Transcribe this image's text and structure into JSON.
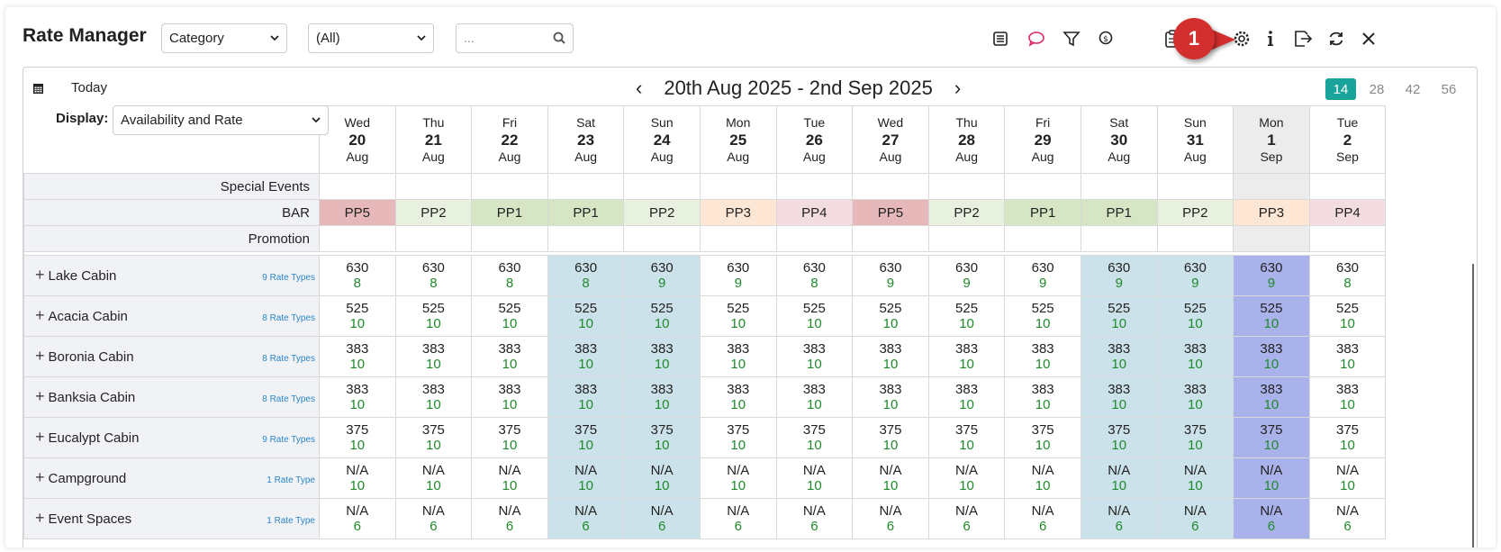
{
  "app": {
    "title": "Rate Manager"
  },
  "filters": {
    "category": "Category",
    "all": "(All)",
    "search_placeholder": "..."
  },
  "toolbar": {
    "icons": [
      "list-icon",
      "chat-icon",
      "filter-icon",
      "money-icon",
      "clipboard-icon",
      "hat-icon",
      "gear-icon",
      "info-icon",
      "export-icon",
      "refresh-icon",
      "close-icon"
    ],
    "callout": "1"
  },
  "nav": {
    "today": "Today",
    "range": "20th Aug 2025 - 2nd Sep 2025",
    "spans": [
      "14",
      "28",
      "42",
      "56"
    ],
    "active_span": "14"
  },
  "display": {
    "label": "Display:",
    "value": "Availability and Rate"
  },
  "days": [
    {
      "dow": "Wed",
      "num": "20",
      "mon": "Aug"
    },
    {
      "dow": "Thu",
      "num": "21",
      "mon": "Aug"
    },
    {
      "dow": "Fri",
      "num": "22",
      "mon": "Aug"
    },
    {
      "dow": "Sat",
      "num": "23",
      "mon": "Aug"
    },
    {
      "dow": "Sun",
      "num": "24",
      "mon": "Aug"
    },
    {
      "dow": "Mon",
      "num": "25",
      "mon": "Aug"
    },
    {
      "dow": "Tue",
      "num": "26",
      "mon": "Aug"
    },
    {
      "dow": "Wed",
      "num": "27",
      "mon": "Aug"
    },
    {
      "dow": "Thu",
      "num": "28",
      "mon": "Aug"
    },
    {
      "dow": "Fri",
      "num": "29",
      "mon": "Aug"
    },
    {
      "dow": "Sat",
      "num": "30",
      "mon": "Aug"
    },
    {
      "dow": "Sun",
      "num": "31",
      "mon": "Aug"
    },
    {
      "dow": "Mon",
      "num": "1",
      "mon": "Sep"
    },
    {
      "dow": "Tue",
      "num": "2",
      "mon": "Sep"
    }
  ],
  "weekend_idx": [
    3,
    4,
    10,
    11
  ],
  "selected_idx": 12,
  "strips": {
    "special_events": "Special Events",
    "bar": "BAR",
    "promotion": "Promotion"
  },
  "bar_codes": [
    "PP5",
    "PP2",
    "PP1",
    "PP1",
    "PP2",
    "PP3",
    "PP4",
    "PP5",
    "PP2",
    "PP1",
    "PP1",
    "PP2",
    "PP3",
    "PP4"
  ],
  "bar_colors": {
    "PP1": "#d6e6c5",
    "PP2": "#e8f1df",
    "PP3": "#fde6d4",
    "PP4": "#f3dde0",
    "PP5": "#e6b8ba"
  },
  "units": [
    {
      "name": "Lake Cabin",
      "rate_types": "9 Rate Types",
      "prices": [
        "630",
        "630",
        "630",
        "630",
        "630",
        "630",
        "630",
        "630",
        "630",
        "630",
        "630",
        "630",
        "630",
        "630"
      ],
      "avail": [
        "8",
        "8",
        "8",
        "8",
        "9",
        "9",
        "8",
        "9",
        "9",
        "9",
        "9",
        "9",
        "9",
        "8"
      ]
    },
    {
      "name": "Acacia Cabin",
      "rate_types": "8 Rate Types",
      "prices": [
        "525",
        "525",
        "525",
        "525",
        "525",
        "525",
        "525",
        "525",
        "525",
        "525",
        "525",
        "525",
        "525",
        "525"
      ],
      "avail": [
        "10",
        "10",
        "10",
        "10",
        "10",
        "10",
        "10",
        "10",
        "10",
        "10",
        "10",
        "10",
        "10",
        "10"
      ]
    },
    {
      "name": "Boronia Cabin",
      "rate_types": "8 Rate Types",
      "prices": [
        "383",
        "383",
        "383",
        "383",
        "383",
        "383",
        "383",
        "383",
        "383",
        "383",
        "383",
        "383",
        "383",
        "383"
      ],
      "avail": [
        "10",
        "10",
        "10",
        "10",
        "10",
        "10",
        "10",
        "10",
        "10",
        "10",
        "10",
        "10",
        "10",
        "10"
      ]
    },
    {
      "name": "Banksia Cabin",
      "rate_types": "8 Rate Types",
      "prices": [
        "383",
        "383",
        "383",
        "383",
        "383",
        "383",
        "383",
        "383",
        "383",
        "383",
        "383",
        "383",
        "383",
        "383"
      ],
      "avail": [
        "10",
        "10",
        "10",
        "10",
        "10",
        "10",
        "10",
        "10",
        "10",
        "10",
        "10",
        "10",
        "10",
        "10"
      ]
    },
    {
      "name": "Eucalypt Cabin",
      "rate_types": "9 Rate Types",
      "prices": [
        "375",
        "375",
        "375",
        "375",
        "375",
        "375",
        "375",
        "375",
        "375",
        "375",
        "375",
        "375",
        "375",
        "375"
      ],
      "avail": [
        "10",
        "10",
        "10",
        "10",
        "10",
        "10",
        "10",
        "10",
        "10",
        "10",
        "10",
        "10",
        "10",
        "10"
      ]
    },
    {
      "name": "Campground",
      "rate_types": "1 Rate Type",
      "prices": [
        "N/A",
        "N/A",
        "N/A",
        "N/A",
        "N/A",
        "N/A",
        "N/A",
        "N/A",
        "N/A",
        "N/A",
        "N/A",
        "N/A",
        "N/A",
        "N/A"
      ],
      "avail": [
        "10",
        "10",
        "10",
        "10",
        "10",
        "10",
        "10",
        "10",
        "10",
        "10",
        "10",
        "10",
        "10",
        "10"
      ]
    },
    {
      "name": "Event Spaces",
      "rate_types": "1 Rate Type",
      "prices": [
        "N/A",
        "N/A",
        "N/A",
        "N/A",
        "N/A",
        "N/A",
        "N/A",
        "N/A",
        "N/A",
        "N/A",
        "N/A",
        "N/A",
        "N/A",
        "N/A"
      ],
      "avail": [
        "6",
        "6",
        "6",
        "6",
        "6",
        "6",
        "6",
        "6",
        "6",
        "6",
        "6",
        "6",
        "6",
        "6"
      ]
    }
  ]
}
